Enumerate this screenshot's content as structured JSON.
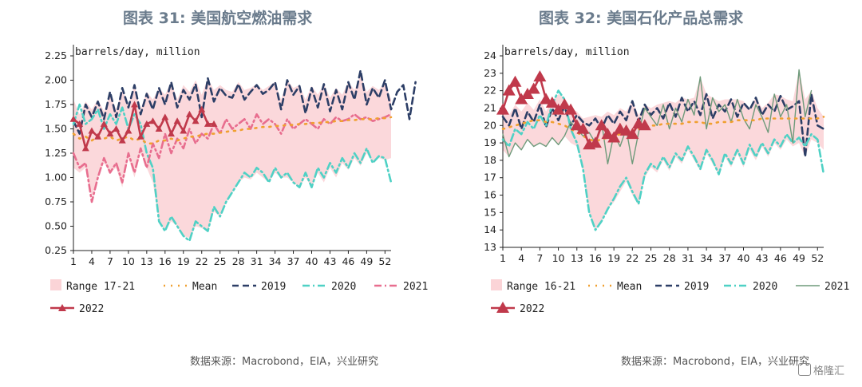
{
  "titles": {
    "left": "图表 31: 美国航空燃油需求",
    "right": "图表 32: 美国石化产品总需求"
  },
  "sources": {
    "left": "数据来源：Macrobond，EIA，兴业研究",
    "right": "数据来源：Macrobond，EIA，兴业研究"
  },
  "watermark": "格隆汇",
  "chart_data": [
    {
      "type": "line",
      "title": "图表 31: 美国航空燃油需求",
      "unit_label": "barrels/day, million",
      "ylim": [
        0.25,
        2.25
      ],
      "yticks": [
        "0.25",
        "0.50",
        "0.75",
        "1.00",
        "1.25",
        "1.50",
        "1.75",
        "2.00",
        "2.25"
      ],
      "xticks": [
        "1",
        "4",
        "7",
        "10",
        "13",
        "16",
        "19",
        "22",
        "25",
        "28",
        "31",
        "34",
        "37",
        "40",
        "43",
        "46",
        "49",
        "52"
      ],
      "legend": [
        "Range 17-21",
        "Mean",
        "2019",
        "2020",
        "2021",
        "2022"
      ],
      "grid": false,
      "series": [
        {
          "name": "2019",
          "color": "#2c3e66",
          "style": "dash",
          "values": [
            1.58,
            1.45,
            1.75,
            1.62,
            1.78,
            1.6,
            1.88,
            1.62,
            1.92,
            1.72,
            1.95,
            1.65,
            1.86,
            1.7,
            1.92,
            1.75,
            1.98,
            1.72,
            1.9,
            1.8,
            1.96,
            1.62,
            2.02,
            1.78,
            1.92,
            1.84,
            1.82,
            1.96,
            1.8,
            1.88,
            1.95,
            1.86,
            1.9,
            1.98,
            1.7,
            2.0,
            1.85,
            1.94,
            1.66,
            1.92,
            1.72,
            1.96,
            1.68,
            1.9,
            1.7,
            1.98,
            1.8,
            2.1,
            1.75,
            1.92,
            1.82,
            2.0,
            1.7,
            1.88,
            1.95,
            1.6,
            1.98
          ]
        },
        {
          "name": "2020",
          "color": "#4fd1c5",
          "style": "dashdot",
          "values": [
            1.55,
            1.75,
            1.55,
            1.6,
            1.7,
            1.5,
            1.65,
            1.55,
            1.72,
            1.5,
            1.65,
            1.55,
            1.25,
            1.1,
            0.55,
            0.45,
            0.6,
            0.5,
            0.4,
            0.35,
            0.55,
            0.5,
            0.45,
            0.7,
            0.6,
            0.75,
            0.85,
            0.95,
            1.05,
            1.0,
            1.1,
            1.05,
            0.95,
            1.1,
            1.0,
            1.05,
            0.95,
            0.9,
            1.05,
            0.9,
            1.1,
            1.0,
            1.15,
            1.05,
            1.2,
            1.1,
            1.25,
            1.15,
            1.3,
            1.15,
            1.22,
            1.2,
            0.95
          ]
        },
        {
          "name": "2021",
          "color": "#e86e8f",
          "style": "dashdot",
          "values": [
            1.25,
            1.1,
            1.15,
            0.75,
            1.0,
            1.2,
            1.05,
            1.15,
            0.95,
            1.25,
            1.05,
            1.3,
            1.1,
            1.35,
            1.2,
            1.45,
            1.25,
            1.4,
            1.3,
            1.5,
            1.35,
            1.45,
            1.4,
            1.55,
            1.45,
            1.6,
            1.5,
            1.55,
            1.6,
            1.5,
            1.65,
            1.55,
            1.6,
            1.55,
            1.45,
            1.6,
            1.5,
            1.55,
            1.6,
            1.55,
            1.5,
            1.6,
            1.55,
            1.62,
            1.58,
            1.6,
            1.65,
            1.6,
            1.62,
            1.58,
            1.6,
            1.62,
            1.65
          ]
        },
        {
          "name": "Mean",
          "color": "#f0a030",
          "style": "dot",
          "values": [
            1.45,
            1.4,
            1.42,
            1.38,
            1.42,
            1.4,
            1.42,
            1.38,
            1.4,
            1.42,
            1.38,
            1.4,
            1.35,
            1.35,
            1.38,
            1.38,
            1.4,
            1.38,
            1.4,
            1.42,
            1.42,
            1.44,
            1.45,
            1.45,
            1.46,
            1.47,
            1.48,
            1.48,
            1.5,
            1.5,
            1.51,
            1.52,
            1.52,
            1.53,
            1.53,
            1.54,
            1.54,
            1.55,
            1.55,
            1.56,
            1.56,
            1.57,
            1.57,
            1.58,
            1.58,
            1.59,
            1.59,
            1.6,
            1.6,
            1.6,
            1.61,
            1.61,
            1.62
          ]
        },
        {
          "name": "2022",
          "color": "#c0394b",
          "style": "solid-marker",
          "values": [
            1.6,
            1.55,
            1.3,
            1.48,
            1.42,
            1.55,
            1.45,
            1.5,
            1.38,
            1.48,
            1.75,
            1.42,
            1.55,
            1.58,
            1.5,
            1.62,
            1.45,
            1.58,
            1.48,
            1.65,
            1.58,
            1.7,
            1.55,
            1.55
          ]
        }
      ],
      "range_low": [
        1.1,
        1.05,
        1.1,
        0.8,
        1.0,
        1.15,
        1.05,
        1.1,
        0.9,
        1.2,
        1.0,
        1.25,
        1.1,
        0.95,
        0.55,
        0.45,
        0.55,
        0.5,
        0.4,
        0.38,
        0.5,
        0.48,
        0.45,
        0.65,
        0.6,
        0.75,
        0.85,
        0.95,
        1.0,
        0.98,
        1.05,
        1.0,
        0.95,
        1.05,
        1.0,
        1.0,
        0.95,
        0.9,
        1.0,
        0.9,
        1.05,
        0.95,
        1.1,
        1.0,
        1.15,
        1.08,
        1.2,
        1.12,
        1.25,
        1.15,
        1.2,
        1.18,
        1.2
      ],
      "range_high": [
        1.8,
        1.65,
        1.78,
        1.7,
        1.8,
        1.68,
        1.85,
        1.7,
        1.9,
        1.75,
        1.95,
        1.7,
        1.88,
        1.8,
        1.92,
        1.85,
        1.98,
        1.8,
        1.95,
        1.88,
        2.0,
        1.85,
        2.02,
        1.9,
        1.95,
        1.9,
        1.88,
        1.98,
        1.9,
        1.92,
        1.96,
        1.9,
        1.94,
        1.98,
        1.8,
        2.0,
        1.92,
        1.95,
        1.8,
        1.94,
        1.85,
        1.96,
        1.82,
        1.92,
        1.85,
        1.98,
        1.9,
        2.05,
        1.88,
        1.94,
        1.9,
        1.98,
        1.8
      ]
    },
    {
      "type": "line",
      "title": "图表 32: 美国石化产品总需求",
      "unit_label": "barrels/day, million",
      "ylim": [
        13,
        24
      ],
      "yticks": [
        "13",
        "14",
        "15",
        "16",
        "17",
        "18",
        "19",
        "20",
        "21",
        "22",
        "23",
        "24"
      ],
      "xticks": [
        "1",
        "4",
        "7",
        "10",
        "13",
        "16",
        "19",
        "22",
        "25",
        "28",
        "31",
        "34",
        "37",
        "40",
        "43",
        "46",
        "49",
        "52"
      ],
      "legend": [
        "Range 16-21",
        "Mean",
        "2019",
        "2020",
        "2021",
        "2022"
      ],
      "grid": false,
      "series": [
        {
          "name": "2019",
          "color": "#2c3e66",
          "style": "dash",
          "values": [
            20.5,
            20.0,
            21.0,
            19.8,
            20.8,
            20.2,
            21.2,
            19.9,
            21.0,
            20.3,
            21.1,
            20.0,
            20.6,
            20.2,
            20.0,
            20.4,
            19.8,
            20.6,
            20.1,
            20.8,
            20.3,
            21.4,
            20.2,
            21.2,
            20.6,
            21.0,
            20.4,
            21.3,
            20.5,
            21.6,
            20.8,
            21.4,
            20.6,
            21.8,
            20.4,
            21.2,
            20.8,
            21.5,
            20.5,
            21.3,
            20.9,
            21.6,
            20.6,
            21.2,
            20.8,
            21.7,
            20.9,
            21.1,
            21.4,
            18.2,
            21.8,
            20.0,
            19.8
          ]
        },
        {
          "name": "2020",
          "color": "#4fd1c5",
          "style": "dashdot",
          "values": [
            19.2,
            18.8,
            19.8,
            19.5,
            20.2,
            19.8,
            20.6,
            20.0,
            21.2,
            22.0,
            21.5,
            19.8,
            19.0,
            17.5,
            15.0,
            14.0,
            14.5,
            15.2,
            15.8,
            16.5,
            17.0,
            16.2,
            15.5,
            17.2,
            17.8,
            17.5,
            18.2,
            17.6,
            18.4,
            18.0,
            18.8,
            18.2,
            17.5,
            18.6,
            18.0,
            17.2,
            18.4,
            17.8,
            18.6,
            17.8,
            18.9,
            18.2,
            19.0,
            18.4,
            19.2,
            18.8,
            19.5,
            19.0,
            19.3,
            18.8,
            19.5,
            19.2,
            17.2
          ]
        },
        {
          "name": "2021",
          "color": "#6e9a7a",
          "style": "solid",
          "values": [
            19.5,
            18.2,
            19.0,
            18.6,
            19.2,
            18.8,
            19.0,
            18.8,
            19.3,
            18.9,
            19.4,
            20.2,
            19.8,
            19.4,
            19.6,
            19.0,
            20.2,
            17.8,
            19.5,
            18.8,
            19.8,
            17.8,
            19.6,
            21.0,
            20.5,
            20.0,
            21.2,
            19.8,
            21.0,
            20.2,
            21.5,
            20.6,
            22.8,
            19.8,
            21.6,
            20.8,
            21.2,
            20.2,
            21.5,
            20.4,
            19.8,
            21.2,
            20.5,
            19.6,
            21.8,
            20.5,
            21.2,
            19.0,
            23.2,
            20.5,
            22.0
          ]
        },
        {
          "name": "Mean",
          "color": "#f0a030",
          "style": "dot",
          "values": [
            19.8,
            19.9,
            20.0,
            20.1,
            20.2,
            20.3,
            20.3,
            20.2,
            20.2,
            20.1,
            20.0,
            19.8,
            19.6,
            19.4,
            19.2,
            19.1,
            19.2,
            19.3,
            19.4,
            19.5,
            19.6,
            19.7,
            19.8,
            19.9,
            20.0,
            20.0,
            20.1,
            20.1,
            20.1,
            20.1,
            20.2,
            20.2,
            20.2,
            20.1,
            20.1,
            20.2,
            20.2,
            20.2,
            20.3,
            20.3,
            20.3,
            20.3,
            20.4,
            20.4,
            20.4,
            20.4,
            20.4,
            20.4,
            20.4,
            20.4,
            20.4,
            20.4,
            20.5
          ]
        },
        {
          "name": "2022",
          "color": "#c0394b",
          "style": "solid-marker",
          "values": [
            20.9,
            22.0,
            22.5,
            21.5,
            21.8,
            22.1,
            22.8,
            21.5,
            21.3,
            20.9,
            21.2,
            20.9,
            20.0,
            19.8,
            18.9,
            19.0,
            20.0,
            19.5,
            19.3,
            19.8,
            19.7,
            19.5,
            20.1,
            20.0
          ]
        }
      ],
      "range_low": [
        18.6,
        18.2,
        19.0,
        18.6,
        19.2,
        18.8,
        19.0,
        18.8,
        19.3,
        18.9,
        19.4,
        19.0,
        18.8,
        17.4,
        15.0,
        14.0,
        14.5,
        15.2,
        15.6,
        16.2,
        16.8,
        16.0,
        15.4,
        17.0,
        17.6,
        17.3,
        18.0,
        17.4,
        18.2,
        17.8,
        18.6,
        18.0,
        17.4,
        18.4,
        17.8,
        17.2,
        18.2,
        17.6,
        18.4,
        17.6,
        18.6,
        18.0,
        18.8,
        18.2,
        19.0,
        18.6,
        19.2,
        18.8,
        19.0,
        18.2,
        19.2,
        19.0,
        18.6
      ],
      "range_high": [
        21.0,
        20.6,
        21.2,
        20.8,
        21.3,
        20.9,
        21.5,
        20.8,
        21.4,
        21.8,
        21.6,
        21.0,
        20.8,
        20.4,
        20.5,
        20.6,
        20.5,
        20.8,
        20.6,
        21.0,
        20.8,
        21.4,
        20.6,
        21.2,
        21.0,
        21.2,
        21.3,
        21.4,
        21.3,
        21.6,
        21.5,
        21.6,
        22.8,
        21.8,
        21.6,
        21.4,
        21.5,
        21.5,
        21.5,
        21.4,
        21.0,
        21.6,
        21.0,
        21.3,
        21.8,
        21.7,
        21.5,
        21.4,
        23.2,
        21.5,
        22.0,
        21.0,
        20.5
      ]
    }
  ]
}
